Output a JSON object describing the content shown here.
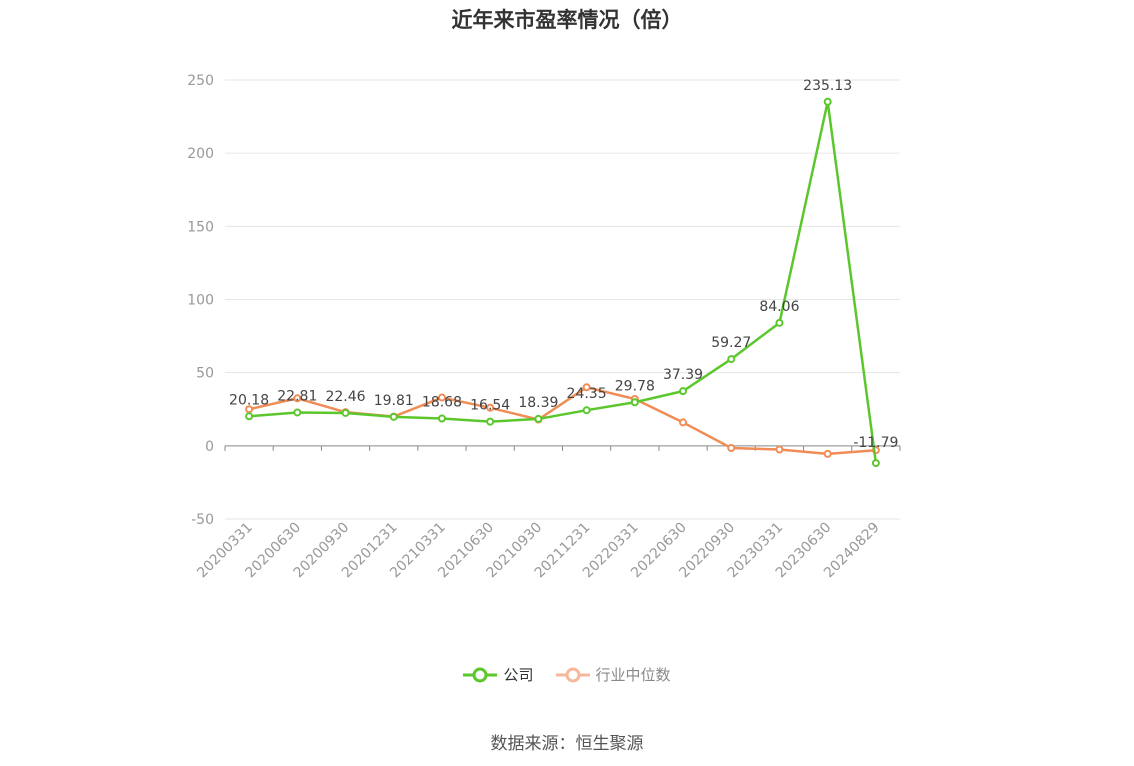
{
  "title": "近年来市盈率情况（倍）",
  "source": "数据来源：恒生聚源",
  "legend": {
    "company": "公司",
    "industry": "行业中位数"
  },
  "colors": {
    "company": "#5bc72d",
    "industry": "#f08c55",
    "industry_legend": "#f5b89a",
    "grid": "#e6e6e6",
    "axis": "#888888"
  },
  "chart_data": {
    "type": "line",
    "categories": [
      "20200331",
      "20200630",
      "20200930",
      "20201231",
      "20210331",
      "20210630",
      "20210930",
      "20211231",
      "20220331",
      "20220630",
      "20220930",
      "20230331",
      "20230630",
      "20240829"
    ],
    "series": [
      {
        "name": "公司",
        "values": [
          20.18,
          22.81,
          22.46,
          19.81,
          18.68,
          16.54,
          18.39,
          24.35,
          29.78,
          37.39,
          59.27,
          84.06,
          235.13,
          -11.79
        ],
        "labels": [
          "20.18",
          "22.81",
          "22.46",
          "19.81",
          "18.68",
          "16.54",
          "18.39",
          "24.35",
          "29.78",
          "37.39",
          "59.27",
          "84.06",
          "235.13",
          "-11.79"
        ]
      },
      {
        "name": "行业中位数",
        "values": [
          25,
          32.5,
          23,
          20,
          33,
          26,
          18,
          40,
          32,
          16,
          -1.5,
          -2.5,
          -5.5,
          -3
        ]
      }
    ],
    "yticks": [
      250,
      200,
      150,
      100,
      50,
      0,
      -50
    ],
    "ylim": [
      -50,
      250
    ],
    "grid": true,
    "legend_position": "bottom"
  }
}
